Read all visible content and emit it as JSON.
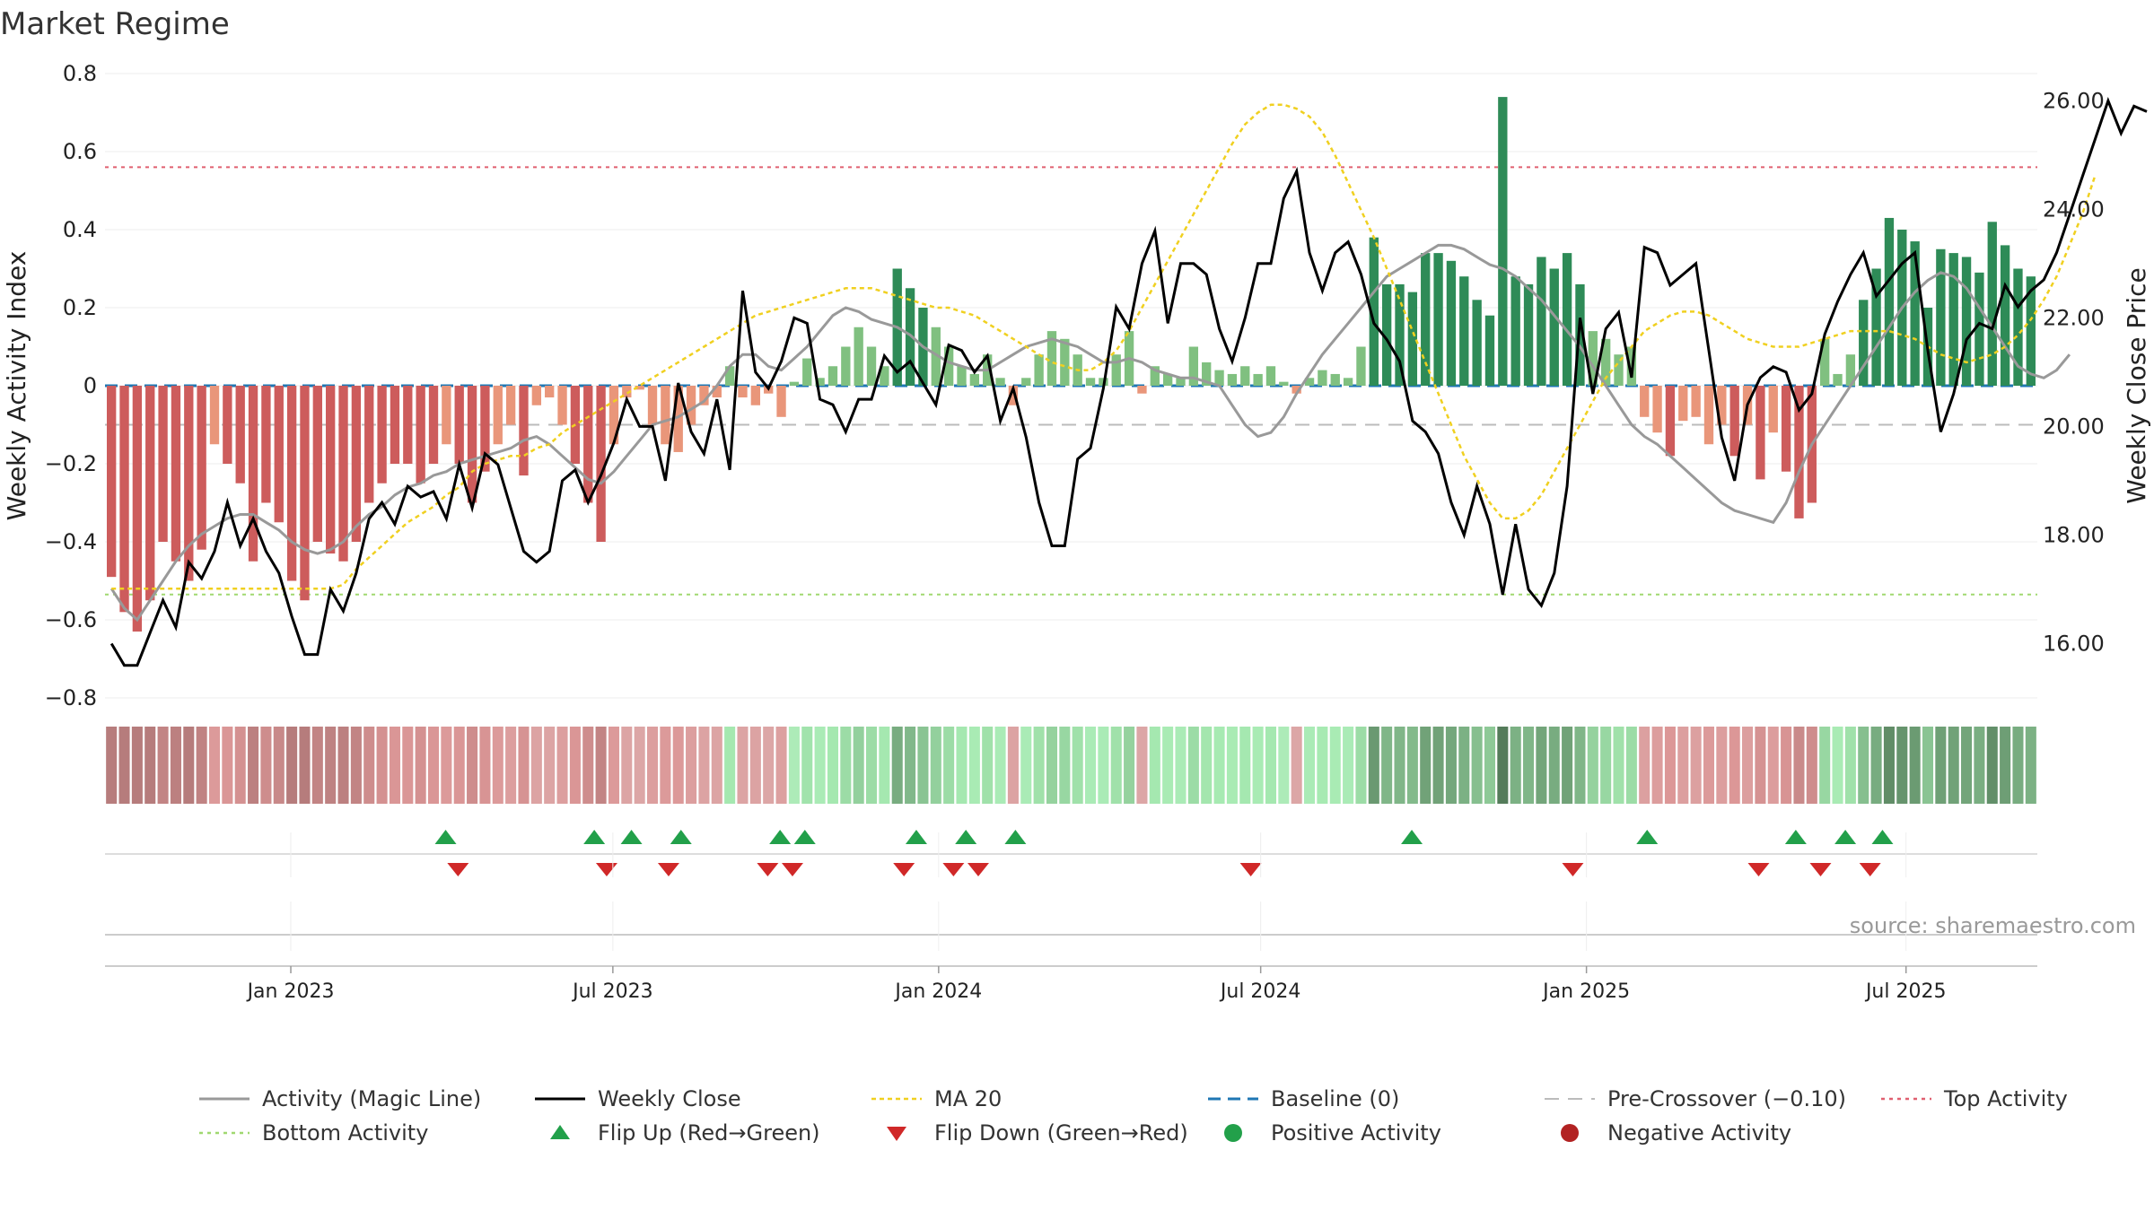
{
  "title": "Market Regime",
  "source": "source: sharemaestro.com",
  "colors": {
    "green_dark": "#2e8b57",
    "green_light": "#80c080",
    "red_dark": "#cd5c5c",
    "red_light": "#e9967a",
    "close": "#000000",
    "magic": "#999999",
    "ma20": "#f0d020",
    "baseline": "#1f77b4",
    "precross": "#bbbbbb",
    "top": "#e06070",
    "bottom": "#a0d870",
    "flip_up": "#22a04a",
    "flip_down": "#d02828",
    "pos_dot": "#22a04a",
    "neg_dot": "#b22222"
  },
  "chart_data": {
    "type": "bar",
    "title": "Market Regime",
    "ylabel": "Weekly Activity Index",
    "y2label": "Weekly Close Price",
    "ylim": [
      -0.8,
      0.8
    ],
    "y2lim": [
      15,
      26.5
    ],
    "yticks": [
      "0.8",
      "0.6",
      "0.4",
      "0.2",
      "0",
      "−0.2",
      "−0.4",
      "−0.6",
      "−0.8"
    ],
    "ytick_values": [
      0.8,
      0.6,
      0.4,
      0.2,
      0,
      -0.2,
      -0.4,
      -0.6,
      -0.8
    ],
    "y2ticks": [
      "26.00",
      "24.00",
      "22.00",
      "20.00",
      "18.00",
      "16.00"
    ],
    "y2tick_values": [
      26,
      24,
      22,
      20,
      18,
      16
    ],
    "x_start_week": 0,
    "x_end_week": 156,
    "xticks": [
      {
        "label": "Jan 2023",
        "week": 15
      },
      {
        "label": "Jul 2023",
        "week": 41
      },
      {
        "label": "Jan 2024",
        "week": 67.3
      },
      {
        "label": "Jul 2024",
        "week": 93.3
      },
      {
        "label": "Jan 2025",
        "week": 119.6
      },
      {
        "label": "Jul 2025",
        "week": 145.4
      }
    ],
    "reference_lines": {
      "baseline": 0,
      "pre_crossover": -0.1,
      "top_activity": 0.56,
      "bottom_activity": -0.535
    },
    "activity": [
      -0.49,
      -0.58,
      -0.63,
      -0.55,
      -0.4,
      -0.45,
      -0.5,
      -0.42,
      -0.15,
      -0.2,
      -0.25,
      -0.45,
      -0.3,
      -0.35,
      -0.5,
      -0.55,
      -0.4,
      -0.43,
      -0.45,
      -0.4,
      -0.3,
      -0.25,
      -0.2,
      -0.2,
      -0.25,
      -0.2,
      -0.15,
      -0.2,
      -0.3,
      -0.22,
      -0.15,
      -0.1,
      -0.23,
      -0.05,
      -0.03,
      -0.1,
      -0.2,
      -0.3,
      -0.4,
      -0.15,
      -0.03,
      -0.01,
      -0.1,
      -0.15,
      -0.17,
      -0.1,
      -0.05,
      -0.03,
      0.05,
      -0.03,
      -0.05,
      -0.02,
      -0.08,
      0.01,
      0.07,
      0.02,
      0.05,
      0.1,
      0.15,
      0.1,
      0.05,
      0.3,
      0.25,
      0.2,
      0.15,
      0.1,
      0.05,
      0.03,
      0.08,
      0.02,
      -0.05,
      0.02,
      0.08,
      0.14,
      0.12,
      0.08,
      0.02,
      0.02,
      0.08,
      0.14,
      -0.02,
      0.05,
      0.03,
      0.02,
      0.1,
      0.06,
      0.04,
      0.03,
      0.05,
      0.03,
      0.05,
      0.01,
      -0.02,
      0.02,
      0.04,
      0.03,
      0.02,
      0.1,
      0.38,
      0.26,
      0.26,
      0.24,
      0.34,
      0.34,
      0.32,
      0.28,
      0.22,
      0.18,
      0.74,
      0.28,
      0.26,
      0.33,
      0.3,
      0.34,
      0.26,
      0.14,
      0.12,
      0.08,
      0.1,
      -0.08,
      -0.12,
      -0.18,
      -0.09,
      -0.08,
      -0.15,
      -0.1,
      -0.18,
      -0.1,
      -0.24,
      -0.12,
      -0.22,
      -0.34,
      -0.3,
      0.12,
      0.03,
      0.08,
      0.22,
      0.3,
      0.43,
      0.4,
      0.37,
      0.2,
      0.35,
      0.34,
      0.33,
      0.29,
      0.42,
      0.36,
      0.3,
      0.28
    ],
    "activity_colors": "not-data",
    "magic_line": [
      -0.52,
      -0.57,
      -0.6,
      -0.55,
      -0.5,
      -0.45,
      -0.41,
      -0.38,
      -0.36,
      -0.34,
      -0.33,
      -0.33,
      -0.35,
      -0.37,
      -0.4,
      -0.42,
      -0.43,
      -0.42,
      -0.4,
      -0.36,
      -0.33,
      -0.31,
      -0.28,
      -0.26,
      -0.25,
      -0.23,
      -0.22,
      -0.2,
      -0.19,
      -0.18,
      -0.17,
      -0.16,
      -0.14,
      -0.13,
      -0.15,
      -0.18,
      -0.21,
      -0.24,
      -0.25,
      -0.22,
      -0.18,
      -0.14,
      -0.1,
      -0.09,
      -0.08,
      -0.06,
      -0.04,
      0.0,
      0.05,
      0.08,
      0.08,
      0.05,
      0.04,
      0.07,
      0.1,
      0.14,
      0.18,
      0.2,
      0.19,
      0.17,
      0.16,
      0.15,
      0.13,
      0.1,
      0.08,
      0.06,
      0.05,
      0.04,
      0.04,
      0.06,
      0.08,
      0.1,
      0.11,
      0.12,
      0.11,
      0.1,
      0.08,
      0.06,
      0.06,
      0.07,
      0.06,
      0.04,
      0.03,
      0.02,
      0.02,
      0.01,
      0.0,
      -0.05,
      -0.1,
      -0.13,
      -0.12,
      -0.08,
      -0.02,
      0.03,
      0.08,
      0.12,
      0.16,
      0.2,
      0.24,
      0.28,
      0.3,
      0.32,
      0.34,
      0.36,
      0.36,
      0.35,
      0.33,
      0.31,
      0.3,
      0.28,
      0.25,
      0.22,
      0.18,
      0.14,
      0.1,
      0.05,
      0.0,
      -0.05,
      -0.1,
      -0.13,
      -0.15,
      -0.18,
      -0.21,
      -0.24,
      -0.27,
      -0.3,
      -0.32,
      -0.33,
      -0.34,
      -0.35,
      -0.3,
      -0.22,
      -0.15,
      -0.1,
      -0.05,
      0.0,
      0.05,
      0.1,
      0.15,
      0.2,
      0.24,
      0.27,
      0.29,
      0.28,
      0.25,
      0.2,
      0.15,
      0.1,
      0.05,
      0.03,
      0.02,
      0.04,
      0.08
    ],
    "weekly_close": [
      16.0,
      15.6,
      15.6,
      16.2,
      16.8,
      16.3,
      17.5,
      17.2,
      17.7,
      18.6,
      17.8,
      18.3,
      17.7,
      17.3,
      16.5,
      15.8,
      15.8,
      17.0,
      16.6,
      17.3,
      18.3,
      18.6,
      18.2,
      18.9,
      18.7,
      18.8,
      18.3,
      19.3,
      18.5,
      19.5,
      19.3,
      18.5,
      17.7,
      17.5,
      17.7,
      19.0,
      19.2,
      18.6,
      19.1,
      19.7,
      20.5,
      20.0,
      20.0,
      19.0,
      20.8,
      19.9,
      19.5,
      20.5,
      19.2,
      22.5,
      21.0,
      20.7,
      21.2,
      22.0,
      21.9,
      20.5,
      20.4,
      19.9,
      20.5,
      20.5,
      21.3,
      21.0,
      21.2,
      20.8,
      20.4,
      21.5,
      21.4,
      21.0,
      21.3,
      20.1,
      20.7,
      19.8,
      18.6,
      17.8,
      17.8,
      19.4,
      19.6,
      20.7,
      22.2,
      21.8,
      23.0,
      23.6,
      21.9,
      23.0,
      23.0,
      22.8,
      21.8,
      21.2,
      22.0,
      23.0,
      23.0,
      24.2,
      24.7,
      23.2,
      22.5,
      23.2,
      23.4,
      22.8,
      21.9,
      21.6,
      21.2,
      20.1,
      19.9,
      19.5,
      18.6,
      18.0,
      18.9,
      18.2,
      16.9,
      18.2,
      17.0,
      16.7,
      17.3,
      18.9,
      22.0,
      20.6,
      21.8,
      22.1,
      20.9,
      23.3,
      23.2,
      22.6,
      22.8,
      23.0,
      21.4,
      19.8,
      19.0,
      20.4,
      20.9,
      21.1,
      21.0,
      20.3,
      20.6,
      21.7,
      22.3,
      22.8,
      23.2,
      22.4,
      22.7,
      23.0,
      23.2,
      21.4,
      19.9,
      20.6,
      21.6,
      21.9,
      21.8,
      22.6,
      22.2,
      22.5,
      22.7,
      23.2,
      23.9,
      24.6,
      25.3,
      26.0,
      25.4,
      25.9,
      25.8
    ],
    "ma20": [
      -0.52,
      -0.52,
      -0.52,
      -0.52,
      -0.52,
      -0.52,
      -0.52,
      -0.52,
      -0.52,
      -0.52,
      -0.52,
      -0.52,
      -0.52,
      -0.52,
      -0.52,
      -0.52,
      -0.52,
      -0.52,
      -0.51,
      -0.47,
      -0.44,
      -0.41,
      -0.38,
      -0.35,
      -0.33,
      -0.31,
      -0.28,
      -0.26,
      -0.22,
      -0.2,
      -0.19,
      -0.18,
      -0.18,
      -0.16,
      -0.15,
      -0.12,
      -0.1,
      -0.08,
      -0.06,
      -0.04,
      -0.02,
      0.0,
      0.02,
      0.04,
      0.06,
      0.08,
      0.1,
      0.12,
      0.14,
      0.16,
      0.18,
      0.19,
      0.2,
      0.21,
      0.22,
      0.23,
      0.24,
      0.25,
      0.25,
      0.25,
      0.24,
      0.23,
      0.22,
      0.21,
      0.2,
      0.2,
      0.19,
      0.18,
      0.16,
      0.14,
      0.12,
      0.1,
      0.08,
      0.06,
      0.05,
      0.04,
      0.04,
      0.06,
      0.09,
      0.14,
      0.2,
      0.26,
      0.32,
      0.38,
      0.44,
      0.5,
      0.56,
      0.62,
      0.67,
      0.7,
      0.72,
      0.72,
      0.71,
      0.69,
      0.65,
      0.59,
      0.52,
      0.45,
      0.38,
      0.3,
      0.22,
      0.14,
      0.06,
      -0.02,
      -0.1,
      -0.18,
      -0.24,
      -0.3,
      -0.34,
      -0.34,
      -0.32,
      -0.28,
      -0.22,
      -0.16,
      -0.1,
      -0.04,
      0.02,
      0.06,
      0.1,
      0.14,
      0.16,
      0.18,
      0.19,
      0.19,
      0.18,
      0.16,
      0.14,
      0.12,
      0.11,
      0.1,
      0.1,
      0.1,
      0.11,
      0.12,
      0.13,
      0.14,
      0.14,
      0.14,
      0.14,
      0.13,
      0.12,
      0.1,
      0.08,
      0.07,
      0.06,
      0.07,
      0.08,
      0.1,
      0.13,
      0.17,
      0.22,
      0.28,
      0.36,
      0.44,
      0.54
    ],
    "flip_up_weeks": [
      27.5,
      39.5,
      42.5,
      46.5,
      54.5,
      56.5,
      65.5,
      69.5,
      73.5,
      105.5,
      124.5,
      136.5,
      140.5,
      143.5
    ],
    "flip_down_weeks": [
      28.5,
      40.5,
      45.5,
      53.5,
      55.5,
      64.5,
      68.5,
      70.5,
      92.5,
      118.5,
      133.5,
      138.5,
      142.5
    ],
    "strip_note": "regime strip under main plot mirrors weekly activity sign and strength",
    "legend": [
      "Activity (Magic Line)",
      "Weekly Close",
      "MA 20",
      "Baseline (0)",
      "Pre-Crossover (−0.10)",
      "Top Activity",
      "Bottom Activity",
      "Flip Up (Red→Green)",
      "Flip Down (Green→Red)",
      "Positive Activity",
      "Negative Activity"
    ]
  }
}
